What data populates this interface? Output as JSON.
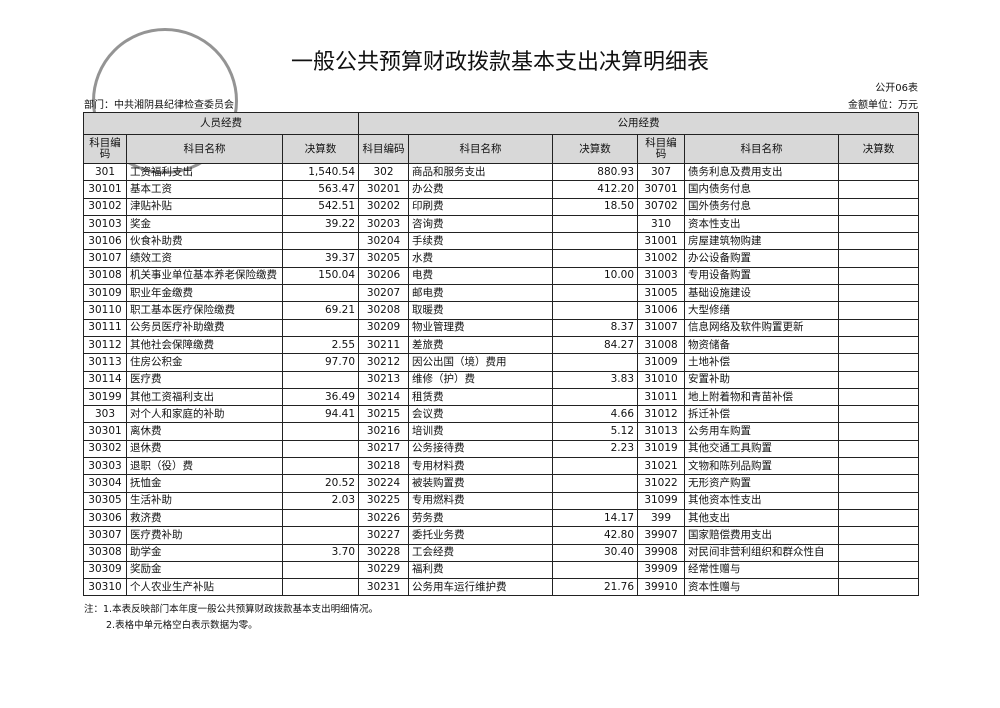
{
  "header": {
    "title": "一般公共预算财政拨款基本支出决算明细表",
    "form_code": "公开06表",
    "department": "部门：中共湘阴县纪律检查委员会",
    "unit": "金额单位：万元"
  },
  "table": {
    "sections": [
      "人员经费",
      "公用经费"
    ],
    "columns": [
      "科目编码",
      "科目名称",
      "决算数",
      "科目编码",
      "科目名称",
      "决算数",
      "科目编码",
      "科目名称",
      "决算数"
    ],
    "rows": [
      [
        "301",
        "工资福利支出",
        "1,540.54",
        "302",
        "商品和服务支出",
        "880.93",
        "307",
        "债务利息及费用支出",
        null
      ],
      [
        "30101",
        "基本工资",
        "563.47",
        "30201",
        "办公费",
        "412.20",
        "30701",
        "国内债务付息",
        null
      ],
      [
        "30102",
        "津贴补贴",
        "542.51",
        "30202",
        "印刷费",
        "18.50",
        "30702",
        "国外债务付息",
        null
      ],
      [
        "30103",
        "奖金",
        "39.22",
        "30203",
        "咨询费",
        null,
        "310",
        "资本性支出",
        null
      ],
      [
        "30106",
        "伙食补助费",
        null,
        "30204",
        "手续费",
        null,
        "31001",
        "房屋建筑物购建",
        null
      ],
      [
        "30107",
        "绩效工资",
        "39.37",
        "30205",
        "水费",
        null,
        "31002",
        "办公设备购置",
        null
      ],
      [
        "30108",
        "机关事业单位基本养老保险缴费",
        "150.04",
        "30206",
        "电费",
        "10.00",
        "31003",
        "专用设备购置",
        null
      ],
      [
        "30109",
        "职业年金缴费",
        null,
        "30207",
        "邮电费",
        null,
        "31005",
        "基础设施建设",
        null
      ],
      [
        "30110",
        "职工基本医疗保险缴费",
        "69.21",
        "30208",
        "取暖费",
        null,
        "31006",
        "大型修缮",
        null
      ],
      [
        "30111",
        "公务员医疗补助缴费",
        null,
        "30209",
        "物业管理费",
        "8.37",
        "31007",
        "信息网络及软件购置更新",
        null
      ],
      [
        "30112",
        "其他社会保障缴费",
        "2.55",
        "30211",
        "差旅费",
        "84.27",
        "31008",
        "物资储备",
        null
      ],
      [
        "30113",
        "住房公积金",
        "97.70",
        "30212",
        "因公出国（境）费用",
        null,
        "31009",
        "土地补偿",
        null
      ],
      [
        "30114",
        "医疗费",
        null,
        "30213",
        "维修（护）费",
        "3.83",
        "31010",
        "安置补助",
        null
      ],
      [
        "30199",
        "其他工资福利支出",
        "36.49",
        "30214",
        "租赁费",
        null,
        "31011",
        "地上附着物和青苗补偿",
        null
      ],
      [
        "303",
        "对个人和家庭的补助",
        "94.41",
        "30215",
        "会议费",
        "4.66",
        "31012",
        "拆迁补偿",
        null
      ],
      [
        "30301",
        "离休费",
        null,
        "30216",
        "培训费",
        "5.12",
        "31013",
        "公务用车购置",
        null
      ],
      [
        "30302",
        "退休费",
        null,
        "30217",
        "公务接待费",
        "2.23",
        "31019",
        "其他交通工具购置",
        null
      ],
      [
        "30303",
        "退职（役）费",
        null,
        "30218",
        "专用材料费",
        null,
        "31021",
        "文物和陈列品购置",
        null
      ],
      [
        "30304",
        "抚恤金",
        "20.52",
        "30224",
        "被装购置费",
        null,
        "31022",
        "无形资产购置",
        null
      ],
      [
        "30305",
        "生活补助",
        "2.03",
        "30225",
        "专用燃料费",
        null,
        "31099",
        "其他资本性支出",
        null
      ],
      [
        "30306",
        "救济费",
        null,
        "30226",
        "劳务费",
        "14.17",
        "399",
        "其他支出",
        null
      ],
      [
        "30307",
        "医疗费补助",
        null,
        "30227",
        "委托业务费",
        "42.80",
        "39907",
        "国家赔偿费用支出",
        null
      ],
      [
        "30308",
        "助学金",
        "3.70",
        "30228",
        "工会经费",
        "30.40",
        "39908",
        "对民间非营利组织和群众性自",
        null
      ],
      [
        "30309",
        "奖励金",
        null,
        "30229",
        "福利费",
        null,
        "39909",
        "经常性赠与",
        null
      ],
      [
        "30310",
        "个人农业生产补贴",
        null,
        "30231",
        "公务用车运行维护费",
        "21.76",
        "39910",
        "资本性赠与",
        null
      ]
    ]
  },
  "notes": [
    "注：1.本表反映部门本年度一般公共预算财政拨款基本支出明细情况。",
    "2.表格中单元格空白表示数据为零。"
  ]
}
